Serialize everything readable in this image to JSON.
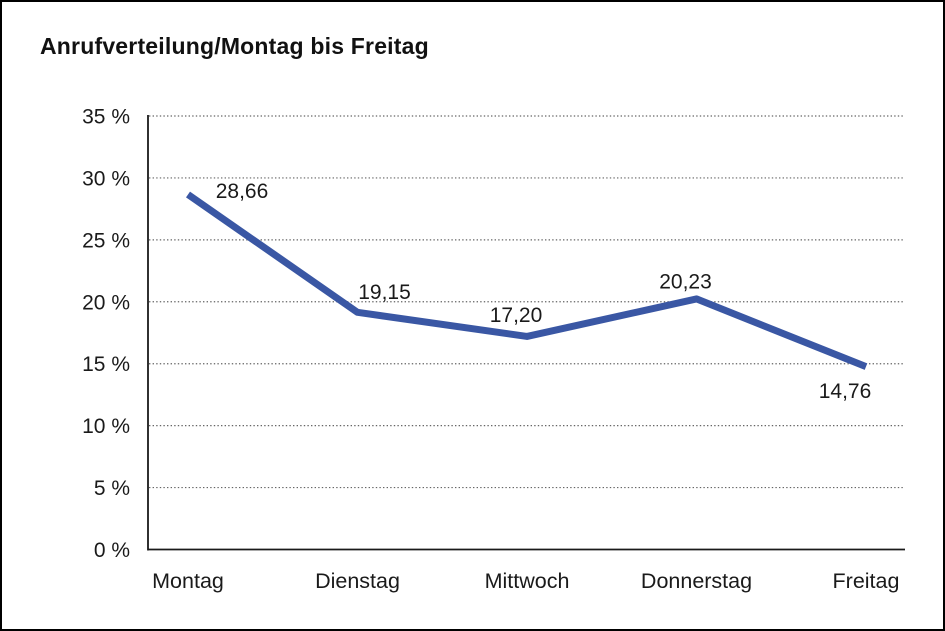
{
  "window": {
    "background_color": "#ffffff",
    "border_color": "#000000"
  },
  "chart_data": {
    "type": "line",
    "title": "Anrufverteilung/Montag bis Freitag",
    "categories": [
      "Montag",
      "Dienstag",
      "Mittwoch",
      "Donnerstag",
      "Freitag"
    ],
    "series": [
      {
        "name": "Anrufverteilung",
        "values": [
          28.66,
          19.15,
          17.2,
          20.23,
          14.76
        ],
        "point_labels": [
          "28,66",
          "19,15",
          "17,20",
          "20,23",
          "14,76"
        ]
      }
    ],
    "xlabel": "",
    "ylabel": "",
    "ylim": [
      0,
      35
    ],
    "ytick_step": 5,
    "ytick_suffix": " %",
    "ytick_labels": [
      "0 %",
      "5 %",
      "10 %",
      "15 %",
      "20 %",
      "25 %",
      "30 %",
      "35 %"
    ],
    "grid": "horizontal-dotted",
    "legend_position": "none",
    "colors": {
      "line": "#3A57A4",
      "axis": "#1a1a1a",
      "grid": "#666666",
      "text": "#1a1a1a"
    }
  }
}
